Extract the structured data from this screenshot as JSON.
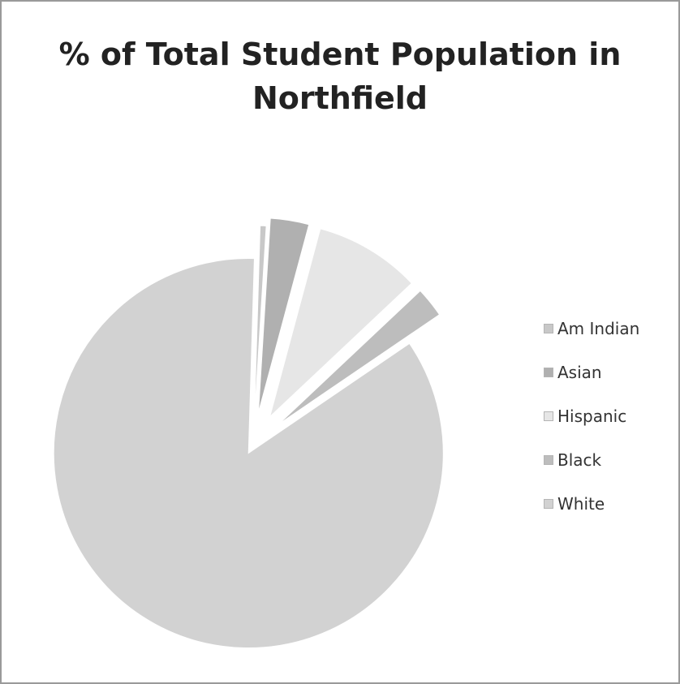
{
  "chart_data": {
    "type": "pie",
    "title": "% of Total Student Population in Northfield",
    "categories": [
      "Am Indian",
      "Asian",
      "Hispanic",
      "Black",
      "White"
    ],
    "values": [
      0.5,
      3.2,
      8.8,
      2.5,
      85.0
    ],
    "exploded": true,
    "legend_position": "right",
    "colors": [
      "#c8c8c8",
      "#b0b0b0",
      "#e6e6e6",
      "#bdbdbd",
      "#d2d2d2"
    ]
  }
}
